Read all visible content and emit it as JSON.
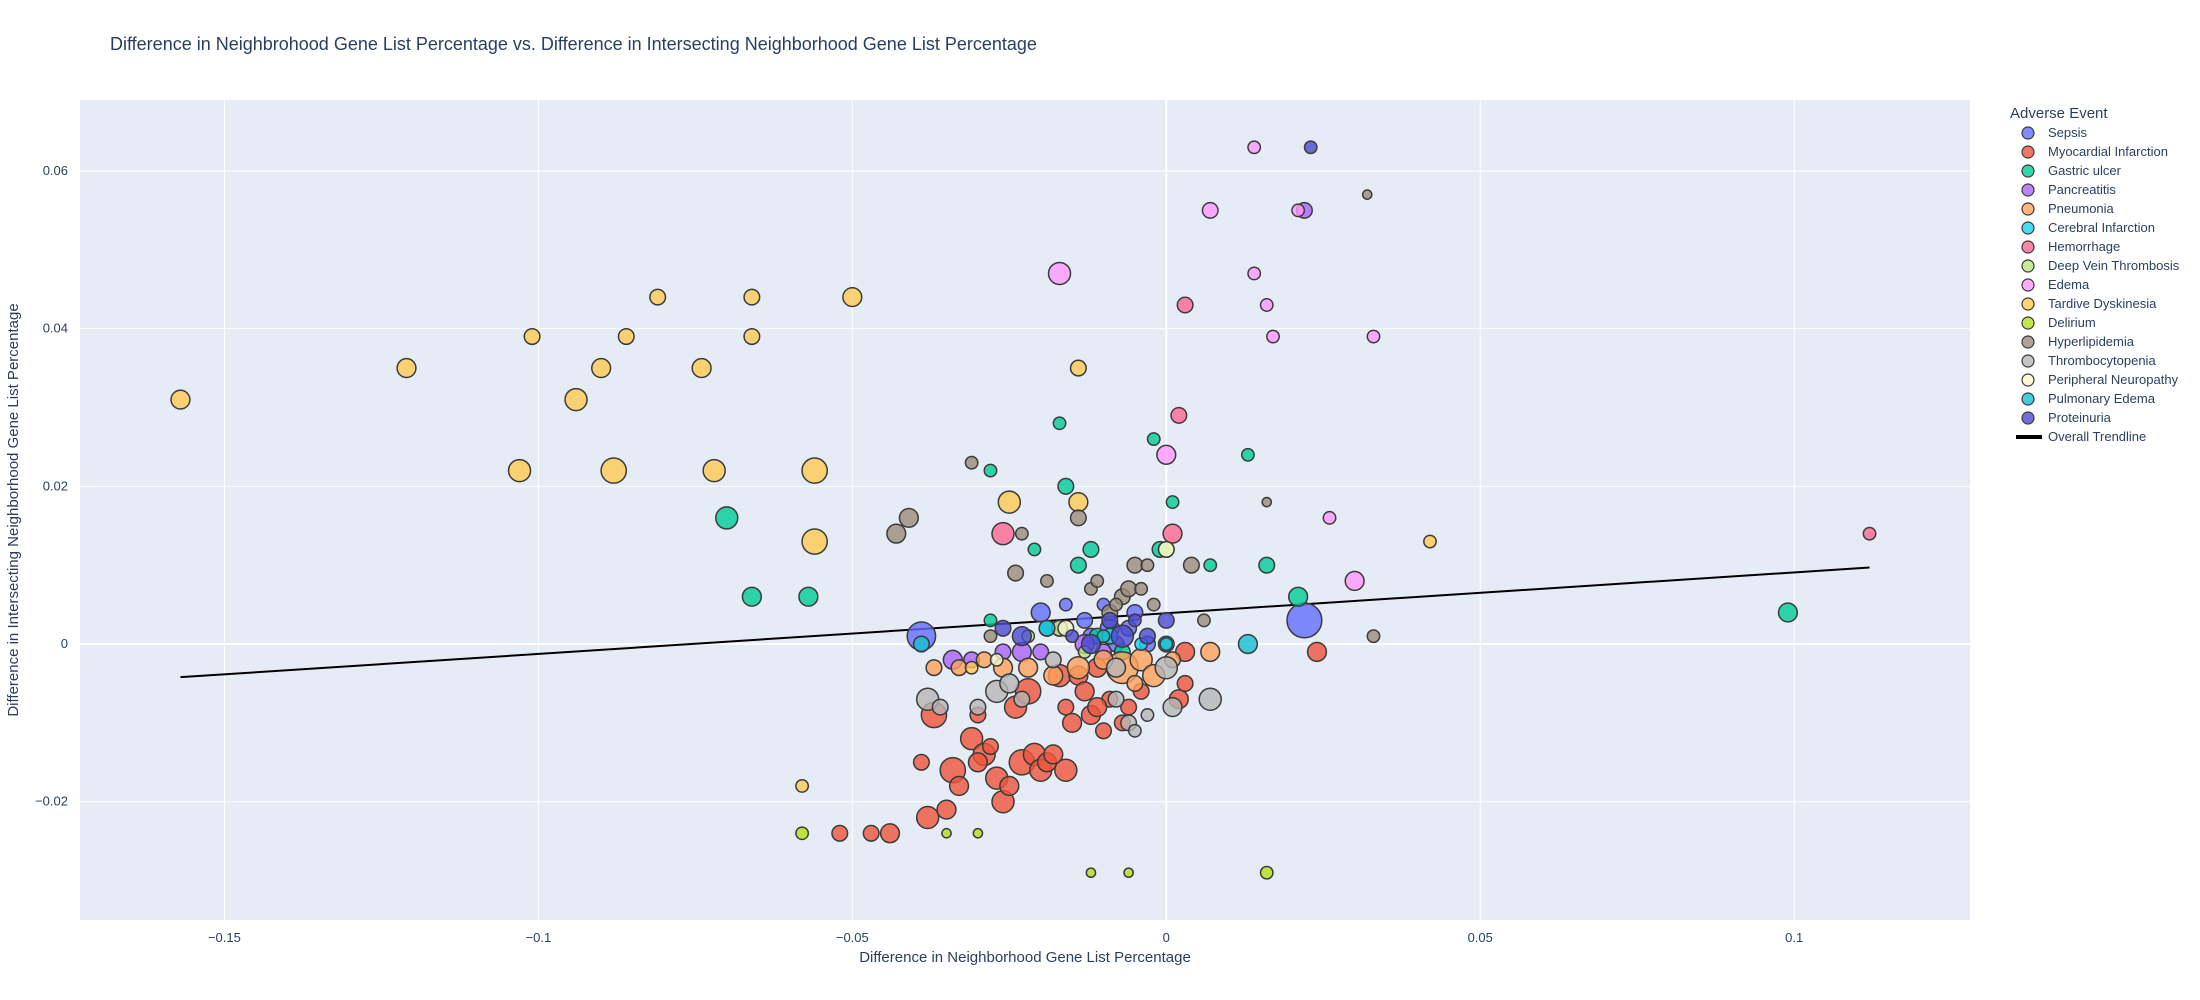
{
  "chart_data": {
    "type": "scatter",
    "title": "Difference in Neighbrohood Gene List Percentage vs. Difference in Intersecting Neighborhood Gene List Percentage",
    "xlabel": "Difference in Neighborhood Gene List Percentage",
    "ylabel": "Difference in Intersecting Neighborhood Gene List Percentage",
    "xlim": [
      -0.173,
      0.128
    ],
    "ylim": [
      -0.035,
      0.069
    ],
    "xticks": [
      -0.15,
      -0.1,
      -0.05,
      0,
      0.05,
      0.1
    ],
    "xtick_labels": [
      "−0.15",
      "−0.1",
      "−0.05",
      "0",
      "0.05",
      "0.1"
    ],
    "yticks": [
      -0.02,
      0,
      0.02,
      0.04,
      0.06
    ],
    "ytick_labels": [
      "−0.02",
      "0",
      "0.02",
      "0.04",
      "0.06"
    ],
    "grid": true,
    "plot_background": "#e5ecf6",
    "legend_title": "Adverse Event",
    "legend_position": "right",
    "trendline": {
      "name": "Overall Trendline",
      "color": "#000000",
      "x": [
        -0.157,
        0.112
      ],
      "y": [
        -0.0042,
        0.0097
      ]
    },
    "series": [
      {
        "name": "Sepsis",
        "color": "#636efa",
        "points": [
          [
            -0.039,
            0.001,
            7
          ],
          [
            0.022,
            0.003,
            9
          ],
          [
            -0.02,
            0.004,
            4
          ],
          [
            -0.009,
            0.002,
            4
          ],
          [
            -0.012,
            0.001,
            3
          ],
          [
            -0.005,
            0.004,
            3
          ],
          [
            -0.013,
            0.003,
            3
          ],
          [
            -0.003,
            0.0,
            3
          ],
          [
            -0.016,
            0.005,
            2
          ],
          [
            -0.006,
            0.002,
            3
          ],
          [
            -0.01,
            0.005,
            2
          ],
          [
            -0.008,
            0.0,
            3
          ]
        ]
      },
      {
        "name": "Myocardial Infarction",
        "color": "#ef553b",
        "points": [
          [
            -0.037,
            -0.009,
            6
          ],
          [
            -0.034,
            -0.016,
            6
          ],
          [
            -0.031,
            -0.012,
            5
          ],
          [
            -0.029,
            -0.014,
            5
          ],
          [
            -0.027,
            -0.017,
            5
          ],
          [
            -0.026,
            -0.02,
            5
          ],
          [
            -0.024,
            -0.008,
            5
          ],
          [
            -0.023,
            -0.015,
            6
          ],
          [
            -0.022,
            -0.006,
            6
          ],
          [
            -0.021,
            -0.014,
            5
          ],
          [
            -0.02,
            -0.016,
            5
          ],
          [
            -0.019,
            -0.015,
            4
          ],
          [
            -0.018,
            -0.014,
            4
          ],
          [
            -0.017,
            -0.004,
            5
          ],
          [
            -0.016,
            -0.016,
            5
          ],
          [
            -0.015,
            -0.01,
            4
          ],
          [
            -0.014,
            -0.004,
            4
          ],
          [
            -0.013,
            -0.006,
            4
          ],
          [
            -0.012,
            -0.009,
            4
          ],
          [
            -0.011,
            -0.003,
            4
          ],
          [
            -0.01,
            -0.011,
            3
          ],
          [
            -0.009,
            -0.007,
            3
          ],
          [
            -0.038,
            -0.022,
            5
          ],
          [
            -0.035,
            -0.021,
            4
          ],
          [
            -0.033,
            -0.018,
            4
          ],
          [
            -0.03,
            -0.015,
            4
          ],
          [
            -0.044,
            -0.024,
            4
          ],
          [
            -0.047,
            -0.024,
            3
          ],
          [
            -0.052,
            -0.024,
            3
          ],
          [
            -0.039,
            -0.015,
            3
          ],
          [
            -0.006,
            -0.008,
            3
          ],
          [
            -0.004,
            -0.006,
            3
          ],
          [
            0.002,
            -0.007,
            4
          ],
          [
            0.003,
            -0.005,
            3
          ],
          [
            0.024,
            -0.001,
            4
          ],
          [
            0.003,
            -0.001,
            4
          ],
          [
            -0.03,
            -0.009,
            3
          ],
          [
            -0.025,
            -0.018,
            4
          ],
          [
            -0.028,
            -0.013,
            3
          ],
          [
            -0.016,
            -0.008,
            3
          ],
          [
            -0.011,
            -0.008,
            4
          ],
          [
            -0.007,
            -0.01,
            3
          ]
        ]
      },
      {
        "name": "Gastric ulcer",
        "color": "#00cc96",
        "points": [
          [
            -0.07,
            0.016,
            5
          ],
          [
            -0.066,
            0.006,
            4
          ],
          [
            -0.057,
            0.006,
            4
          ],
          [
            -0.017,
            0.028,
            2
          ],
          [
            -0.016,
            0.02,
            3
          ],
          [
            -0.028,
            0.022,
            2
          ],
          [
            -0.014,
            0.01,
            3
          ],
          [
            -0.012,
            0.012,
            3
          ],
          [
            -0.002,
            0.026,
            2
          ],
          [
            0.001,
            0.018,
            2
          ],
          [
            0.007,
            0.01,
            2
          ],
          [
            0.013,
            0.024,
            2
          ],
          [
            0.016,
            0.01,
            3
          ],
          [
            0.021,
            0.006,
            4
          ],
          [
            0.099,
            0.004,
            4
          ],
          [
            -0.001,
            0.012,
            3
          ],
          [
            -0.021,
            0.012,
            2
          ],
          [
            -0.028,
            0.003,
            2
          ],
          [
            -0.011,
            0.001,
            3
          ],
          [
            -0.007,
            -0.001,
            3
          ]
        ]
      },
      {
        "name": "Pancreatitis",
        "color": "#ab63fa",
        "points": [
          [
            -0.034,
            -0.002,
            4
          ],
          [
            -0.031,
            -0.002,
            3
          ],
          [
            -0.026,
            -0.001,
            3
          ],
          [
            -0.023,
            -0.001,
            4
          ],
          [
            -0.02,
            -0.001,
            3
          ],
          [
            -0.013,
            0.0,
            4
          ],
          [
            -0.017,
            0.002,
            3
          ],
          [
            0.022,
            0.055,
            3
          ],
          [
            -0.01,
            -0.001,
            3
          ]
        ]
      },
      {
        "name": "Pneumonia",
        "color": "#ffa15a",
        "points": [
          [
            -0.007,
            -0.003,
            8
          ],
          [
            -0.004,
            -0.002,
            5
          ],
          [
            -0.002,
            -0.004,
            5
          ],
          [
            0.007,
            -0.001,
            4
          ],
          [
            -0.014,
            -0.003,
            5
          ],
          [
            -0.018,
            -0.004,
            4
          ],
          [
            -0.022,
            -0.003,
            4
          ],
          [
            -0.026,
            -0.003,
            4
          ],
          [
            -0.029,
            -0.002,
            3
          ],
          [
            -0.033,
            -0.003,
            3
          ],
          [
            -0.037,
            -0.003,
            3
          ],
          [
            -0.01,
            -0.002,
            4
          ],
          [
            0.001,
            -0.002,
            3
          ],
          [
            -0.005,
            -0.005,
            3
          ]
        ]
      },
      {
        "name": "Cerebral Infarction",
        "color": "#19d3f3",
        "points": [
          [
            -0.009,
            0.001,
            3
          ],
          [
            -0.019,
            0.002,
            3
          ],
          [
            0.0,
            0.0,
            3
          ],
          [
            -0.004,
            0.0,
            2
          ]
        ]
      },
      {
        "name": "Hemorrhage",
        "color": "#ff6692",
        "points": [
          [
            -0.026,
            0.014,
            5
          ],
          [
            0.001,
            0.014,
            4
          ],
          [
            0.002,
            0.029,
            3
          ],
          [
            0.003,
            0.043,
            3
          ],
          [
            0.112,
            0.014,
            2
          ]
        ]
      },
      {
        "name": "Deep Vein Thrombosis",
        "color": "#b6e880",
        "points": [
          [
            -0.017,
            0.002,
            3
          ],
          [
            0.0,
            0.012,
            3
          ],
          [
            -0.022,
            0.001,
            2
          ],
          [
            -0.013,
            -0.001,
            2
          ]
        ]
      },
      {
        "name": "Edema",
        "color": "#ff97ff",
        "points": [
          [
            -0.017,
            0.047,
            5
          ],
          [
            0.007,
            0.055,
            3
          ],
          [
            0.0,
            0.024,
            4
          ],
          [
            0.014,
            0.063,
            2
          ],
          [
            0.014,
            0.047,
            2
          ],
          [
            0.016,
            0.043,
            2
          ],
          [
            0.017,
            0.039,
            2
          ],
          [
            0.021,
            0.055,
            2
          ],
          [
            0.026,
            0.016,
            2
          ],
          [
            0.03,
            0.008,
            4
          ],
          [
            0.033,
            0.039,
            2
          ]
        ]
      },
      {
        "name": "Tardive Dyskinesia",
        "color": "#fecb52",
        "points": [
          [
            -0.157,
            0.031,
            4
          ],
          [
            -0.121,
            0.035,
            4
          ],
          [
            -0.101,
            0.039,
            3
          ],
          [
            -0.094,
            0.031,
            5
          ],
          [
            -0.103,
            0.022,
            5
          ],
          [
            -0.09,
            0.035,
            4
          ],
          [
            -0.086,
            0.039,
            3
          ],
          [
            -0.081,
            0.044,
            3
          ],
          [
            -0.088,
            0.022,
            6
          ],
          [
            -0.074,
            0.035,
            4
          ],
          [
            -0.072,
            0.022,
            5
          ],
          [
            -0.066,
            0.044,
            3
          ],
          [
            -0.066,
            0.039,
            3
          ],
          [
            -0.056,
            0.022,
            6
          ],
          [
            -0.056,
            0.013,
            6
          ],
          [
            -0.05,
            0.044,
            4
          ],
          [
            -0.025,
            0.018,
            5
          ],
          [
            -0.014,
            0.035,
            3
          ],
          [
            -0.014,
            0.018,
            4
          ],
          [
            -0.058,
            -0.018,
            2
          ],
          [
            0.042,
            0.013,
            2
          ],
          [
            -0.031,
            -0.003,
            2
          ]
        ]
      },
      {
        "name": "Delirium",
        "color": "#b2e116",
        "points": [
          [
            -0.058,
            -0.024,
            2
          ],
          [
            -0.035,
            -0.024,
            1
          ],
          [
            -0.03,
            -0.024,
            1
          ],
          [
            -0.012,
            -0.029,
            1
          ],
          [
            -0.006,
            -0.029,
            1
          ],
          [
            0.016,
            -0.029,
            2
          ]
        ]
      },
      {
        "name": "Hyperlipidemia",
        "color": "#9a8c7a",
        "points": [
          [
            -0.043,
            0.014,
            4
          ],
          [
            -0.041,
            0.016,
            4
          ],
          [
            -0.031,
            0.023,
            2
          ],
          [
            -0.024,
            0.009,
            3
          ],
          [
            -0.023,
            0.014,
            2
          ],
          [
            -0.014,
            0.016,
            3
          ],
          [
            -0.012,
            0.007,
            2
          ],
          [
            -0.011,
            0.008,
            2
          ],
          [
            -0.009,
            0.004,
            3
          ],
          [
            -0.007,
            0.006,
            3
          ],
          [
            -0.006,
            0.007,
            3
          ],
          [
            -0.005,
            0.01,
            3
          ],
          [
            -0.003,
            0.01,
            2
          ],
          [
            -0.004,
            0.007,
            2
          ],
          [
            -0.002,
            0.005,
            2
          ],
          [
            0.004,
            0.01,
            3
          ],
          [
            0.006,
            0.003,
            2
          ],
          [
            -0.019,
            0.008,
            2
          ],
          [
            0.016,
            0.018,
            1
          ],
          [
            0.033,
            0.001,
            2
          ],
          [
            0.032,
            0.057,
            1
          ],
          [
            -0.028,
            0.001,
            2
          ],
          [
            -0.008,
            0.005,
            2
          ]
        ]
      },
      {
        "name": "Thrombocytopenia",
        "color": "#b6b6b6",
        "points": [
          [
            -0.038,
            -0.007,
            5
          ],
          [
            -0.036,
            -0.008,
            3
          ],
          [
            -0.03,
            -0.008,
            3
          ],
          [
            -0.027,
            -0.006,
            5
          ],
          [
            -0.025,
            -0.005,
            4
          ],
          [
            -0.023,
            -0.007,
            3
          ],
          [
            -0.008,
            -0.003,
            4
          ],
          [
            0.0,
            -0.003,
            5
          ],
          [
            0.001,
            -0.008,
            4
          ],
          [
            0.007,
            -0.007,
            5
          ],
          [
            -0.006,
            -0.01,
            3
          ],
          [
            -0.005,
            -0.011,
            2
          ],
          [
            -0.003,
            -0.009,
            2
          ],
          [
            -0.018,
            -0.002,
            3
          ],
          [
            -0.008,
            -0.007,
            3
          ]
        ]
      },
      {
        "name": "Peripheral Neuropathy",
        "color": "#f6f6c8",
        "points": [
          [
            0.0,
            0.012,
            3
          ],
          [
            -0.016,
            0.002,
            3
          ],
          [
            -0.027,
            -0.002,
            2
          ]
        ]
      },
      {
        "name": "Pulmonary Edema",
        "color": "#17becf",
        "points": [
          [
            0.013,
            0.0,
            4
          ],
          [
            -0.019,
            0.002,
            3
          ],
          [
            -0.039,
            0.0,
            3
          ],
          [
            0.0,
            0.0,
            2
          ],
          [
            -0.01,
            0.001,
            2
          ]
        ]
      },
      {
        "name": "Proteinuria",
        "color": "#4b4bd1",
        "points": [
          [
            -0.023,
            0.001,
            4
          ],
          [
            -0.007,
            0.001,
            5
          ],
          [
            -0.012,
            0.0,
            4
          ],
          [
            -0.003,
            0.001,
            3
          ],
          [
            0.0,
            0.003,
            3
          ],
          [
            -0.026,
            0.002,
            3
          ],
          [
            -0.009,
            0.003,
            3
          ],
          [
            -0.005,
            0.003,
            2
          ],
          [
            0.023,
            0.063,
            2
          ],
          [
            -0.015,
            0.001,
            2
          ]
        ]
      }
    ]
  }
}
